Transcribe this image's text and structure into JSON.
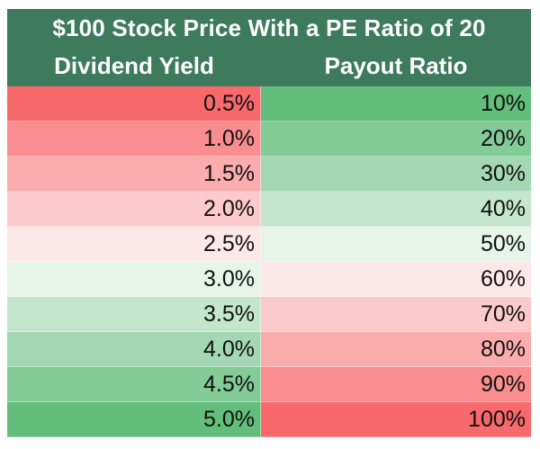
{
  "table": {
    "title": "$100 Stock Price With a PE Ratio of 20",
    "columns": [
      "Dividend Yield",
      "Payout Ratio"
    ],
    "rows": [
      {
        "dividend_yield": "0.5%",
        "payout_ratio": "10%",
        "yield_color": "#f8696b",
        "payout_color": "#63be7b"
      },
      {
        "dividend_yield": "1.0%",
        "payout_ratio": "20%",
        "yield_color": "#f98d8f",
        "payout_color": "#83cb97"
      },
      {
        "dividend_yield": "1.5%",
        "payout_ratio": "30%",
        "yield_color": "#fbacad",
        "payout_color": "#a3d8b2"
      },
      {
        "dividend_yield": "2.0%",
        "payout_ratio": "40%",
        "yield_color": "#fccacb",
        "payout_color": "#c4e6cd"
      },
      {
        "dividend_yield": "2.5%",
        "payout_ratio": "50%",
        "yield_color": "#fde8e9",
        "payout_color": "#e6f4ea"
      },
      {
        "dividend_yield": "3.0%",
        "payout_ratio": "60%",
        "yield_color": "#e6f4ea",
        "payout_color": "#fde8e9"
      },
      {
        "dividend_yield": "3.5%",
        "payout_ratio": "70%",
        "yield_color": "#c4e6cd",
        "payout_color": "#fccacb"
      },
      {
        "dividend_yield": "4.0%",
        "payout_ratio": "80%",
        "yield_color": "#a3d8b2",
        "payout_color": "#fbacad"
      },
      {
        "dividend_yield": "4.5%",
        "payout_ratio": "90%",
        "yield_color": "#83cb97",
        "payout_color": "#f98d8f"
      },
      {
        "dividend_yield": "5.0%",
        "payout_ratio": "100%",
        "yield_color": "#63be7b",
        "payout_color": "#f8696b"
      }
    ],
    "header_color": "#3d7a5e"
  }
}
